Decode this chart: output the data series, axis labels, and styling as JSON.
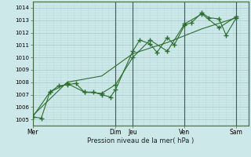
{
  "background_color": "#cce8e8",
  "grid_color_major": "#aacccc",
  "grid_color_minor": "#bbdddd",
  "line_color": "#2d6e2d",
  "marker_color": "#2d6e2d",
  "xlabel": "Pression niveau de la mer( hPa )",
  "ylim": [
    1004.5,
    1014.5
  ],
  "yticks": [
    1005,
    1006,
    1007,
    1008,
    1009,
    1010,
    1011,
    1012,
    1013,
    1014
  ],
  "day_labels": [
    "Mer",
    "Dim",
    "Jeu",
    "Ven",
    "Sam"
  ],
  "day_positions": [
    0,
    4.8,
    5.8,
    8.8,
    11.8
  ],
  "series1_x": [
    0,
    0.5,
    1.0,
    1.5,
    2.0,
    2.5,
    3.0,
    3.5,
    4.0,
    4.5,
    4.8,
    5.8,
    6.2,
    6.8,
    7.2,
    7.8,
    8.2,
    8.8,
    9.2,
    9.8,
    10.2,
    10.8,
    11.2,
    11.8
  ],
  "series1_y": [
    1005.2,
    1005.1,
    1007.2,
    1007.7,
    1007.8,
    1007.9,
    1007.2,
    1007.2,
    1007.0,
    1006.8,
    1007.4,
    1010.5,
    1011.4,
    1011.1,
    1010.4,
    1011.6,
    1011.0,
    1012.6,
    1012.8,
    1013.6,
    1013.2,
    1013.1,
    1011.8,
    1013.2
  ],
  "series2_x": [
    0,
    1.0,
    2.0,
    3.0,
    4.0,
    4.8,
    5.8,
    6.8,
    7.8,
    8.8,
    9.8,
    10.8,
    11.8
  ],
  "series2_y": [
    1005.2,
    1007.2,
    1007.9,
    1007.2,
    1007.1,
    1007.8,
    1010.0,
    1011.4,
    1010.5,
    1012.7,
    1013.5,
    1012.4,
    1013.3
  ],
  "series3_x": [
    0,
    2.0,
    4.0,
    5.8,
    7.8,
    9.8,
    11.8
  ],
  "series3_y": [
    1005.3,
    1008.0,
    1008.5,
    1010.3,
    1011.2,
    1012.3,
    1013.2
  ],
  "xmin": 0,
  "xmax": 12.5
}
